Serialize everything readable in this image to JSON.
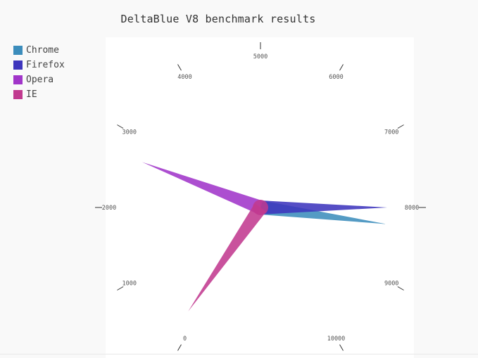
{
  "chart_data": {
    "type": "radial-bar",
    "title": "DeltaBlue V8 benchmark results",
    "range": [
      0,
      12000
    ],
    "ticks": [
      0,
      1000,
      2000,
      3000,
      4000,
      5000,
      6000,
      7000,
      8000,
      9000,
      10000
    ],
    "legend_position": "top-left",
    "series": [
      {
        "name": "Chrome",
        "value": 8250,
        "color": "#3c8dbc"
      },
      {
        "name": "Firefox",
        "value": 8000,
        "color": "#3e35bd"
      },
      {
        "name": "Opera",
        "value": 2700,
        "color": "#a135c9"
      },
      {
        "name": "IE",
        "value": 160,
        "color": "#c13a8f"
      }
    ]
  }
}
